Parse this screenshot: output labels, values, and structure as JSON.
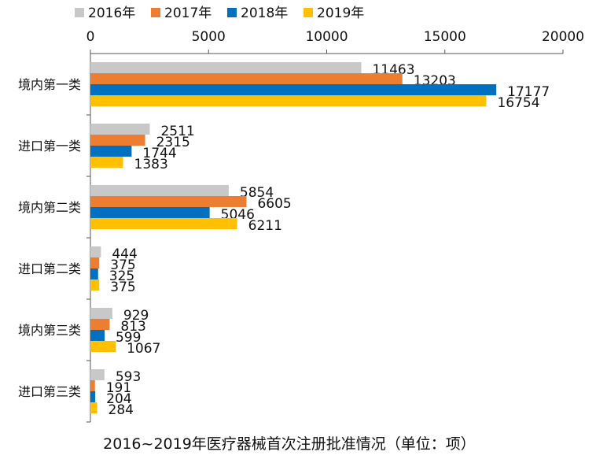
{
  "chart_data": {
    "type": "bar",
    "orientation": "horizontal",
    "title": "2016~2019年医疗器械首次注册批准情况（单位：项）",
    "categories": [
      "境内第一类",
      "进口第一类",
      "境内第二类",
      "进口第二类",
      "境内第三类",
      "进口第三类"
    ],
    "series": [
      {
        "name": "2016年",
        "color": "#c8c8c8",
        "values": [
          11463,
          2511,
          5854,
          444,
          929,
          593
        ]
      },
      {
        "name": "2017年",
        "color": "#ed7d31",
        "values": [
          13203,
          2315,
          6605,
          375,
          813,
          191
        ]
      },
      {
        "name": "2018年",
        "color": "#0070c0",
        "values": [
          17177,
          1744,
          5046,
          325,
          599,
          204
        ]
      },
      {
        "name": "2019年",
        "color": "#ffc000",
        "values": [
          16754,
          1383,
          6211,
          375,
          1067,
          284
        ]
      }
    ],
    "xlim": [
      0,
      20000
    ],
    "xticks": [
      "0",
      "5000",
      "10000",
      "15000",
      "20000"
    ],
    "axis_position": "top",
    "legend_position": "top",
    "grid": false,
    "data_labels": true
  }
}
